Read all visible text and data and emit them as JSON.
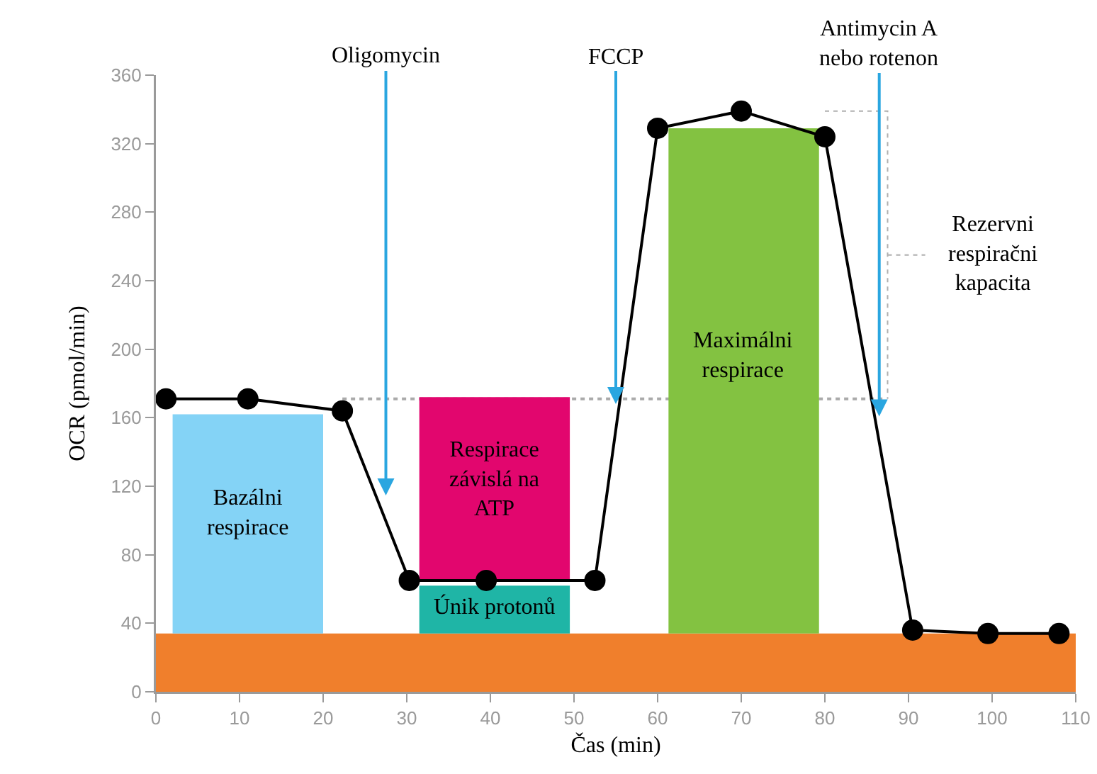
{
  "chart_data": {
    "type": "line",
    "xlabel": "Čas (min)",
    "ylabel": "OCR (pmol/min)",
    "xlim": [
      0,
      110
    ],
    "xticks": [
      0,
      10,
      20,
      30,
      40,
      50,
      60,
      70,
      80,
      90,
      100,
      110
    ],
    "ylim": [
      0,
      360
    ],
    "yticks": [
      0,
      40,
      80,
      120,
      160,
      200,
      240,
      280,
      320,
      360
    ],
    "grid": false,
    "marker": "circle",
    "line_style": "solid",
    "series": [
      {
        "type": "bar",
        "name": "Bazálni respirace",
        "color": "#84d3f6",
        "x": [
          11
        ],
        "base": [
          34
        ],
        "values": [
          128
        ]
      },
      {
        "type": "bar",
        "name": "Respirace závislá na ATP",
        "color": "#e2066e",
        "x": [
          40.5
        ],
        "base": [
          65
        ],
        "values": [
          107
        ]
      },
      {
        "type": "bar",
        "name": "Únik protonů",
        "color": "#1fb5a6",
        "x": [
          40.5
        ],
        "base": [
          34
        ],
        "values": [
          28
        ]
      },
      {
        "type": "bar",
        "name": "Maximálni respirace",
        "color": "#83c241",
        "x": [
          70.3
        ],
        "base": [
          34
        ],
        "values": [
          295
        ]
      },
      {
        "color": "#000000",
        "x": [
          1.2,
          11,
          22.3,
          30.3,
          39.5,
          52.5,
          60,
          70,
          80,
          90.5,
          99.5,
          108
        ],
        "values": [
          171,
          171,
          164,
          65,
          65,
          65,
          329,
          339,
          324,
          36,
          34,
          34
        ]
      }
    ],
    "bands": [
      {
        "axis": "y",
        "from": 0,
        "to": 34,
        "color": "#f07f2c"
      }
    ],
    "ref_lines": [
      {
        "axis": "y",
        "value": 171,
        "color": "#aaaaaa",
        "line_style": "dotted"
      },
      {
        "axis": "x",
        "value": 27.5,
        "label": "Oligomycin",
        "color": "#2aa6e0"
      },
      {
        "axis": "x",
        "value": 55,
        "label": "FCCP",
        "color": "#2aa6e0"
      },
      {
        "axis": "x",
        "value": 86.5,
        "label": "Antimycin A nebo rotenon",
        "color": "#2aa6e0"
      }
    ],
    "annotations": [
      "Rezervni respiračni kapacita"
    ]
  }
}
